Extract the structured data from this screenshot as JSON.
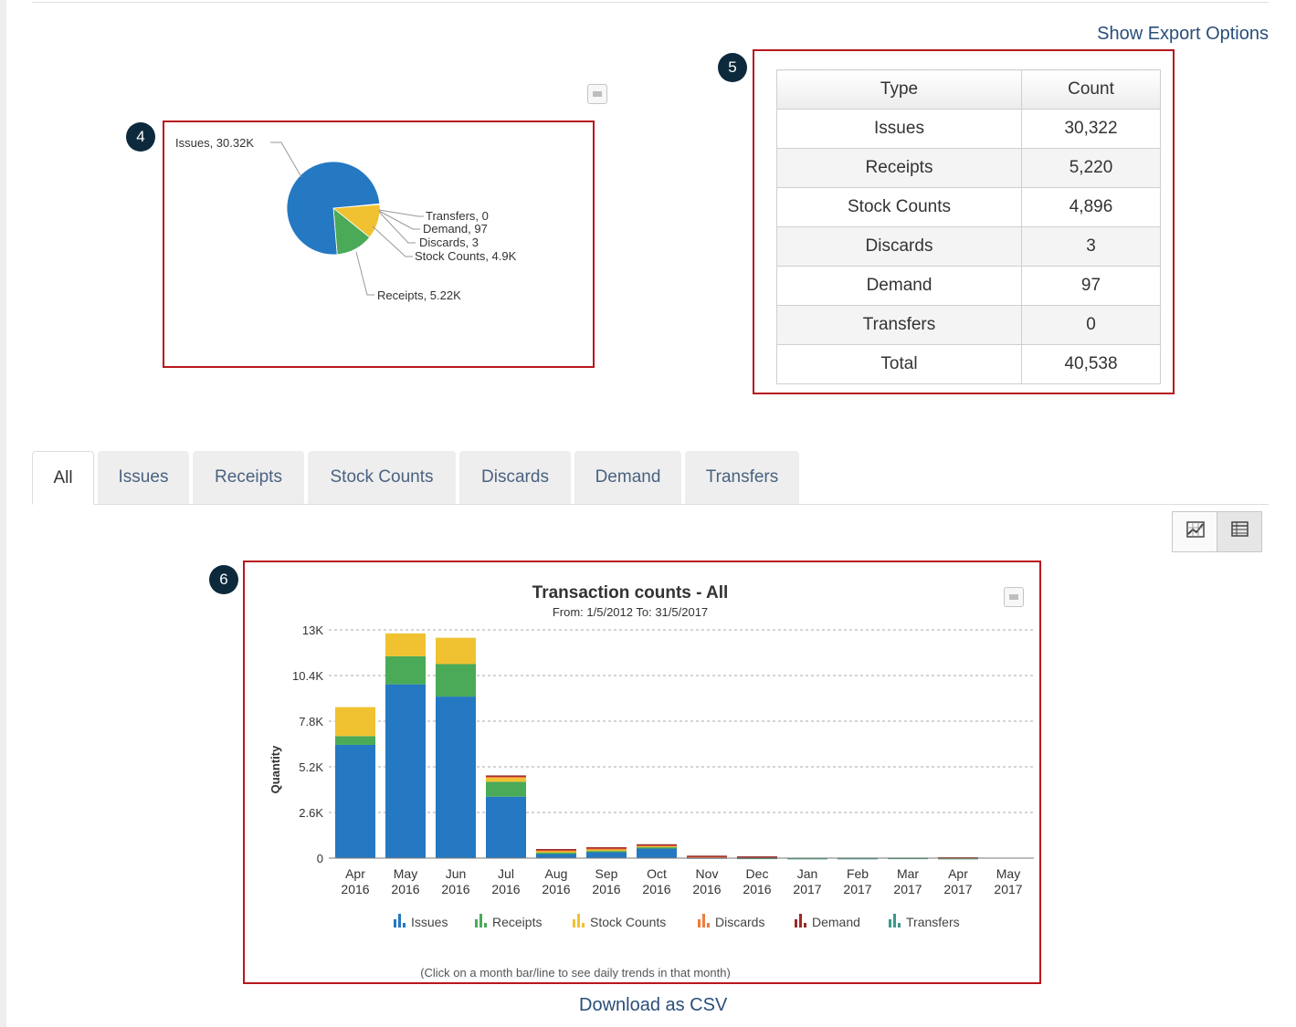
{
  "export_link": "Show Export Options",
  "callouts": [
    "4",
    "5",
    "6"
  ],
  "pie_chart": {
    "chart_data": {
      "type": "pie",
      "slices": [
        {
          "name": "Issues",
          "value": 30322,
          "label": "Issues, 30.32K",
          "color": "#2578c2"
        },
        {
          "name": "Receipts",
          "value": 5220,
          "label": "Receipts, 5.22K",
          "color": "#4aaa58"
        },
        {
          "name": "Stock Counts",
          "value": 4896,
          "label": "Stock Counts, 4.9K",
          "color": "#f0c231"
        },
        {
          "name": "Discards",
          "value": 3,
          "label": "Discards, 3",
          "color": "#f07c3c"
        },
        {
          "name": "Demand",
          "value": 97,
          "label": "Demand, 97",
          "color": "#9c2a2a"
        },
        {
          "name": "Transfers",
          "value": 0,
          "label": "Transfers, 0",
          "color": "#3a9a8e"
        }
      ]
    }
  },
  "summary_table": {
    "headers": [
      "Type",
      "Count"
    ],
    "rows": [
      [
        "Issues",
        "30,322"
      ],
      [
        "Receipts",
        "5,220"
      ],
      [
        "Stock Counts",
        "4,896"
      ],
      [
        "Discards",
        "3"
      ],
      [
        "Demand",
        "97"
      ],
      [
        "Transfers",
        "0"
      ],
      [
        "Total",
        "40,538"
      ]
    ]
  },
  "tabs": [
    "All",
    "Issues",
    "Receipts",
    "Stock Counts",
    "Discards",
    "Demand",
    "Transfers"
  ],
  "active_tab": "All",
  "chart_data": {
    "type": "bar",
    "stacked": true,
    "title": "Transaction counts - All",
    "subtitle": "From: 1/5/2012 To: 31/5/2017",
    "xlabel": "",
    "ylabel": "Quantity",
    "ylim": [
      0,
      13000
    ],
    "yticks": [
      0,
      2600,
      5200,
      7800,
      10400,
      13000
    ],
    "ytick_labels": [
      "0",
      "2.6K",
      "5.2K",
      "7.8K",
      "10.4K",
      "13K"
    ],
    "categories": [
      [
        "Apr",
        "2016"
      ],
      [
        "May",
        "2016"
      ],
      [
        "Jun",
        "2016"
      ],
      [
        "Jul",
        "2016"
      ],
      [
        "Aug",
        "2016"
      ],
      [
        "Sep",
        "2016"
      ],
      [
        "Oct",
        "2016"
      ],
      [
        "Nov",
        "2016"
      ],
      [
        "Dec",
        "2016"
      ],
      [
        "Jan",
        "2017"
      ],
      [
        "Feb",
        "2017"
      ],
      [
        "Mar",
        "2017"
      ],
      [
        "Apr",
        "2017"
      ],
      [
        "May",
        "2017"
      ]
    ],
    "series": [
      {
        "name": "Issues",
        "color": "#2578c2",
        "values": [
          6450,
          9900,
          9200,
          3500,
          250,
          350,
          550,
          40,
          20,
          10,
          10,
          20,
          10,
          0
        ]
      },
      {
        "name": "Receipts",
        "color": "#4aaa58",
        "values": [
          500,
          1600,
          1850,
          850,
          60,
          60,
          70,
          10,
          10,
          10,
          20,
          10,
          10,
          0
        ]
      },
      {
        "name": "Stock Counts",
        "color": "#f0c231",
        "values": [
          1650,
          1300,
          1500,
          220,
          90,
          90,
          90,
          0,
          0,
          0,
          0,
          0,
          0,
          0
        ]
      },
      {
        "name": "Discards",
        "color": "#f07c3c",
        "values": [
          0,
          0,
          0,
          80,
          60,
          60,
          40,
          40,
          40,
          0,
          0,
          0,
          20,
          0
        ]
      },
      {
        "name": "Demand",
        "color": "#9c2a2a",
        "values": [
          0,
          0,
          0,
          60,
          60,
          60,
          40,
          50,
          30,
          0,
          0,
          0,
          10,
          0
        ]
      },
      {
        "name": "Transfers",
        "color": "#3a9a8e",
        "values": [
          0,
          0,
          0,
          0,
          0,
          0,
          0,
          0,
          0,
          0,
          0,
          0,
          0,
          0
        ]
      }
    ],
    "legend": [
      "Issues",
      "Receipts",
      "Stock Counts",
      "Discards",
      "Demand",
      "Transfers"
    ],
    "footnote": "(Click on a month bar/line to see daily trends in that month)"
  },
  "csv_link": "Download as CSV"
}
